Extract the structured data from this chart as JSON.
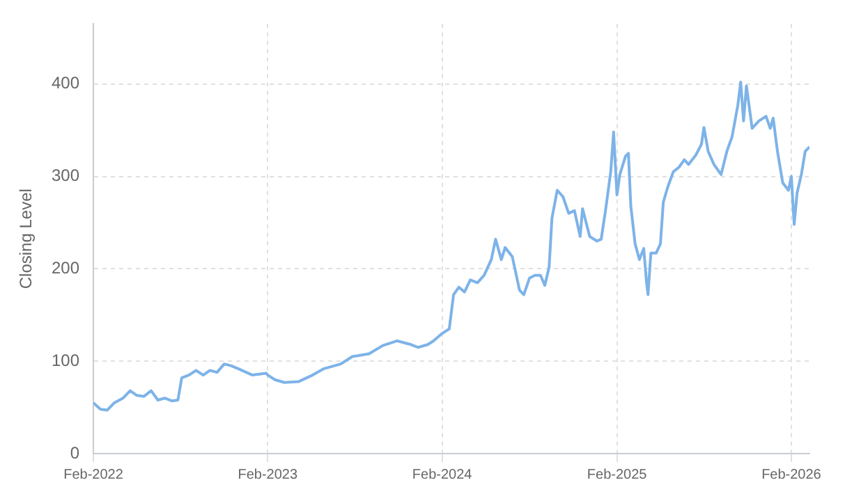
{
  "chart_data": {
    "type": "line",
    "ylabel": "Closing Level",
    "grid": true,
    "legend": false,
    "marker": "none",
    "line_style": "solid",
    "xlim": [
      "2022-02-01",
      "2026-03-11"
    ],
    "ylim": [
      0,
      465
    ],
    "yticks": [
      0,
      100,
      200,
      300,
      400
    ],
    "xticks": [
      {
        "value": "2022-02-01",
        "label": "Feb-2022"
      },
      {
        "value": "2023-02-01",
        "label": "Feb-2023"
      },
      {
        "value": "2024-02-01",
        "label": "Feb-2024"
      },
      {
        "value": "2025-02-01",
        "label": "Feb-2025"
      },
      {
        "value": "2026-02-01",
        "label": "Feb-2026"
      }
    ],
    "x": [
      "2022-02-01",
      "2022-02-16",
      "2022-03-02",
      "2022-03-17",
      "2022-04-04",
      "2022-04-19",
      "2022-05-03",
      "2022-05-18",
      "2022-06-02",
      "2022-06-16",
      "2022-07-01",
      "2022-07-16",
      "2022-07-28",
      "2022-08-05",
      "2022-08-20",
      "2022-09-04",
      "2022-09-19",
      "2022-10-03",
      "2022-10-18",
      "2022-11-02",
      "2022-11-17",
      "2022-12-01",
      "2022-12-31",
      "2023-01-29",
      "2023-02-01",
      "2023-02-16",
      "2023-03-08",
      "2023-04-07",
      "2023-05-06",
      "2023-05-30",
      "2023-07-04",
      "2023-07-28",
      "2023-09-01",
      "2023-09-30",
      "2023-10-30",
      "2023-11-28",
      "2023-12-13",
      "2024-01-02",
      "2024-01-14",
      "2024-02-01",
      "2024-02-16",
      "2024-02-25",
      "2024-03-07",
      "2024-03-19",
      "2024-03-31",
      "2024-04-15",
      "2024-04-29",
      "2024-05-14",
      "2024-05-23",
      "2024-06-04",
      "2024-06-12",
      "2024-06-27",
      "2024-07-12",
      "2024-07-21",
      "2024-08-02",
      "2024-08-13",
      "2024-08-25",
      "2024-09-03",
      "2024-09-12",
      "2024-09-18",
      "2024-09-29",
      "2024-10-11",
      "2024-10-23",
      "2024-11-04",
      "2024-11-16",
      "2024-11-21",
      "2024-12-06",
      "2024-12-21",
      "2024-12-30",
      "2025-01-08",
      "2025-01-19",
      "2025-01-25",
      "2025-02-01",
      "2025-02-07",
      "2025-02-19",
      "2025-02-25",
      "2025-03-02",
      "2025-03-11",
      "2025-03-20",
      "2025-03-29",
      "2025-04-04",
      "2025-04-07",
      "2025-04-13",
      "2025-04-24",
      "2025-05-03",
      "2025-05-09",
      "2025-05-18",
      "2025-05-30",
      "2025-06-11",
      "2025-06-22",
      "2025-07-01",
      "2025-07-16",
      "2025-07-28",
      "2025-08-02",
      "2025-08-11",
      "2025-08-23",
      "2025-09-07",
      "2025-09-19",
      "2025-09-30",
      "2025-10-12",
      "2025-10-18",
      "2025-10-24",
      "2025-10-30",
      "2025-11-11",
      "2025-11-25",
      "2025-12-10",
      "2025-12-19",
      "2025-12-25",
      "2026-01-03",
      "2026-01-14",
      "2026-01-26",
      "2026-02-01",
      "2026-02-07",
      "2026-02-13",
      "2026-02-22",
      "2026-03-02",
      "2026-03-11"
    ],
    "series": [
      {
        "color": "#7db3e8",
        "values": [
          55,
          48,
          47,
          55,
          60,
          68,
          63,
          62,
          68,
          58,
          60,
          57,
          58,
          82,
          85,
          90,
          85,
          90,
          88,
          97,
          95,
          92,
          85,
          87,
          85,
          80,
          77,
          78,
          85,
          92,
          97,
          105,
          108,
          117,
          122,
          118,
          115,
          118,
          122,
          130,
          135,
          172,
          180,
          175,
          188,
          185,
          193,
          210,
          232,
          210,
          223,
          213,
          177,
          172,
          190,
          193,
          193,
          182,
          202,
          255,
          285,
          278,
          260,
          263,
          235,
          265,
          235,
          230,
          232,
          263,
          305,
          348,
          280,
          302,
          322,
          325,
          268,
          227,
          210,
          222,
          185,
          172,
          217,
          217,
          227,
          272,
          288,
          305,
          310,
          318,
          313,
          323,
          335,
          353,
          327,
          313,
          302,
          327,
          343,
          377,
          402,
          360,
          398,
          352,
          360,
          365,
          352,
          363,
          327,
          293,
          285,
          300,
          248,
          282,
          302,
          327,
          332
        ]
      }
    ]
  }
}
